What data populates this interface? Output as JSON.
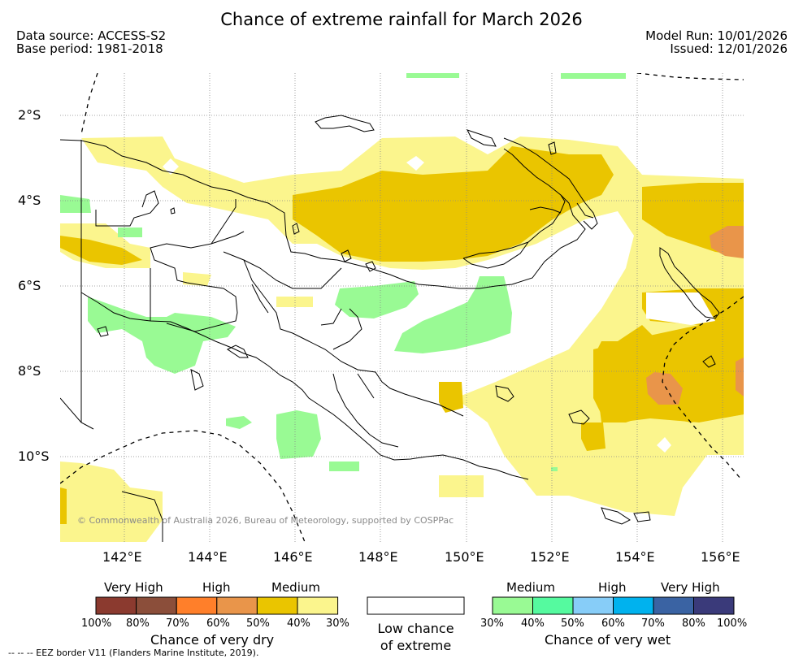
{
  "header": {
    "title": "Chance of extreme rainfall for March 2026",
    "data_source": "Data source: ACCESS-S2",
    "base_period": "Base period: 1981-2018",
    "model_run": "Model Run: 10/01/2026",
    "issued": "Issued: 12/01/2026"
  },
  "map": {
    "lat_labels": [
      "2°S",
      "4°S",
      "6°S",
      "8°S",
      "10°S"
    ],
    "lon_labels": [
      "142°E",
      "144°E",
      "146°E",
      "148°E",
      "150°E",
      "152°E",
      "154°E",
      "156°E"
    ],
    "copyright": "© Commonwealth of Australia 2026, Bureau of Meteorology, supported by COSPPac"
  },
  "legend": {
    "dry": {
      "categories": [
        "Very High",
        "High",
        "Medium"
      ],
      "percent_labels": [
        "100%",
        "80%",
        "70%",
        "60%",
        "50%",
        "40%",
        "30%"
      ],
      "colors": [
        "#8b3a2f",
        "#8b4e3a",
        "#ff7f2a",
        "#e9954a",
        "#eac500",
        "#fbf58d"
      ],
      "title": "Chance of very dry"
    },
    "low": {
      "title_line1": "Low chance",
      "title_line2": "of extreme"
    },
    "wet": {
      "categories": [
        "Medium",
        "High",
        "Very High"
      ],
      "percent_labels": [
        "30%",
        "40%",
        "50%",
        "60%",
        "70%",
        "80%",
        "100%"
      ],
      "colors": [
        "#99fa94",
        "#55fa9f",
        "#87cdf8",
        "#00b2ee",
        "#3a63a3",
        "#3a3a7a"
      ],
      "title": "Chance of very wet"
    }
  },
  "footer": {
    "eez_note": "--  --  -- EEZ border V11 (Flanders Marine Institute, 2019)."
  }
}
